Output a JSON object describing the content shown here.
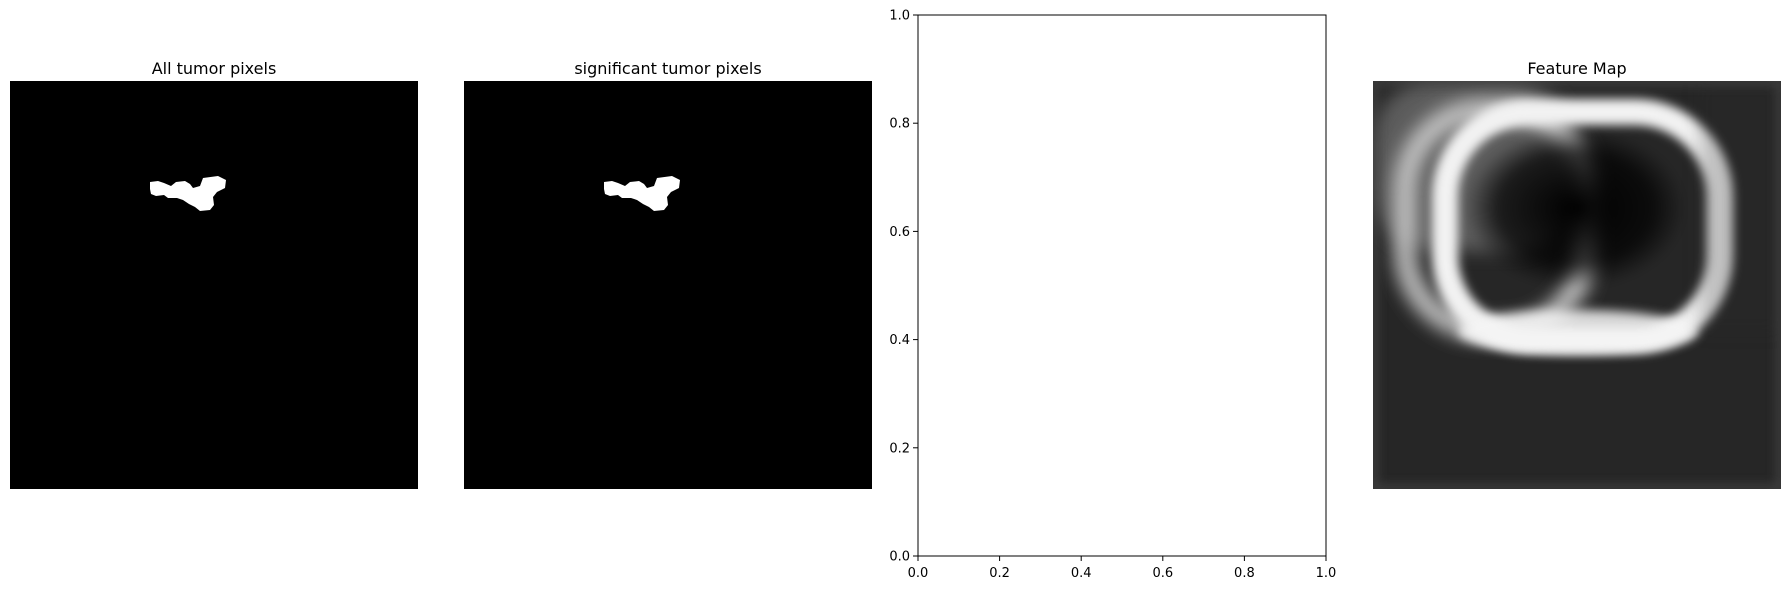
{
  "figure": {
    "panels": [
      {
        "title": "All tumor pixels"
      },
      {
        "title": "significant tumor pixels"
      },
      {
        "title": ""
      },
      {
        "title": "Feature Map"
      }
    ]
  },
  "chart_data": [
    {
      "type": "image",
      "title": "All tumor pixels",
      "colormap": "gray",
      "axes_visible": false,
      "content": "binary mask: black background with a small white tumor blob in the upper-left quadrant"
    },
    {
      "type": "image",
      "title": "significant tumor pixels",
      "colormap": "gray",
      "axes_visible": false,
      "content": "binary mask identical to first panel"
    },
    {
      "type": "scatter",
      "title": "",
      "xlabel": "",
      "ylabel": "",
      "xlim": [
        0.0,
        1.0
      ],
      "ylim": [
        0.0,
        1.0
      ],
      "xticks": [
        "0.0",
        "0.2",
        "0.4",
        "0.6",
        "0.8",
        "1.0"
      ],
      "yticks": [
        "0.0",
        "0.2",
        "0.4",
        "0.6",
        "0.8",
        "1.0"
      ],
      "series": [],
      "grid": false
    },
    {
      "type": "heatmap",
      "title": "Feature Map",
      "colormap": "gray",
      "axes_visible": false,
      "content": "blurred grayscale feature map with bright rounded ring structures on a dark background"
    }
  ],
  "colors": {
    "background": "#ffffff",
    "mask_bg": "#000000",
    "mask_fg": "#ffffff",
    "axis": "#000000",
    "feature_bg": "#262626"
  }
}
